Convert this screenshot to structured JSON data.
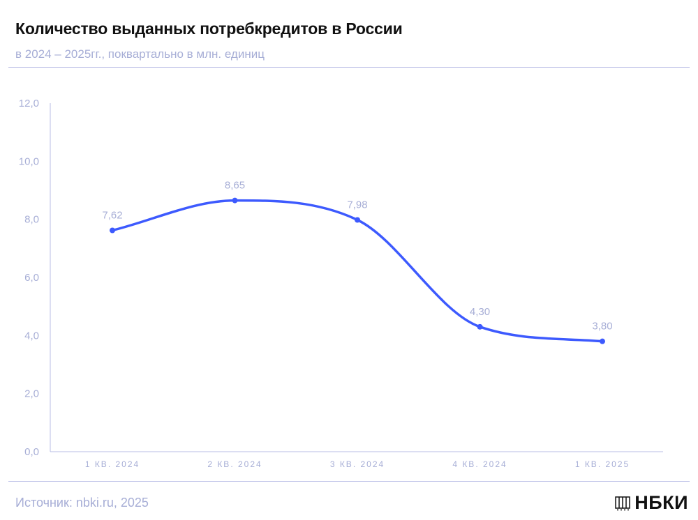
{
  "header": {
    "title": "Количество выданных потребкредитов в России",
    "subtitle": "в 2024 – 2025гг., поквартально в млн. единиц"
  },
  "footer": {
    "source": "Источник: nbki.ru, 2025",
    "logo_text": "НБКИ"
  },
  "colors": {
    "line": "#3d5afe",
    "axis_text": "#a7aed6",
    "rule": "#b9bde6"
  },
  "chart_data": {
    "type": "line",
    "categories": [
      "1 КВ. 2024",
      "2 КВ. 2024",
      "3 КВ. 2024",
      "4 КВ. 2024",
      "1 КВ. 2025"
    ],
    "values": [
      7.62,
      8.65,
      7.98,
      4.3,
      3.8
    ],
    "data_labels": [
      "7,62",
      "8,65",
      "7,98",
      "4,30",
      "3,80"
    ],
    "y_ticks": [
      "0,0",
      "2,0",
      "4,0",
      "6,0",
      "8,0",
      "10,0",
      "12,0"
    ],
    "ylim": [
      0,
      12
    ],
    "grid": false,
    "smooth": true
  }
}
